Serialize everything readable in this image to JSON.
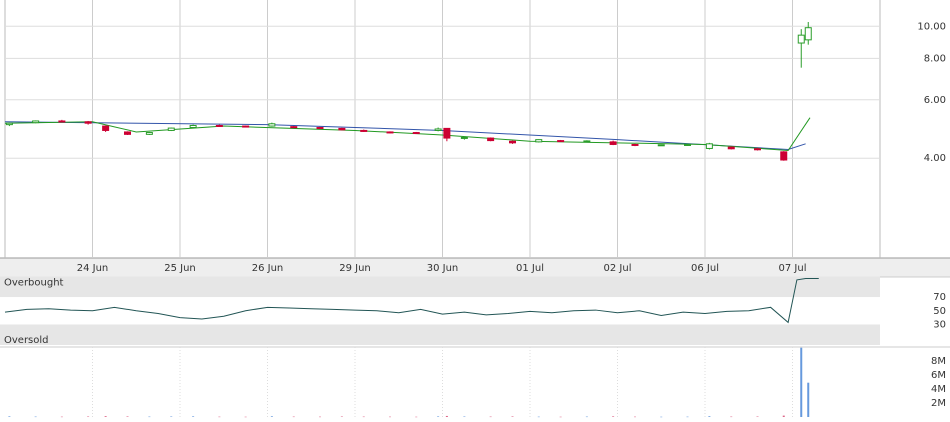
{
  "chart_data": [
    {
      "type": "candlestick",
      "log_scale": true,
      "grid": true,
      "up_color": "#2a9d2a",
      "down_color": "#cc0033",
      "xlim": [
        0,
        10
      ],
      "ylim": [
        2,
        12
      ],
      "yticks": [
        {
          "value": 10,
          "label": "10.00"
        },
        {
          "value": 8,
          "label": "8.00"
        },
        {
          "value": 6,
          "label": "6.00"
        },
        {
          "value": 4,
          "label": "4.00"
        }
      ],
      "xticks": [
        {
          "value": 1,
          "label": "24 Jun"
        },
        {
          "value": 2,
          "label": "25 Jun"
        },
        {
          "value": 3,
          "label": "26 Jun"
        },
        {
          "value": 4,
          "label": "29 Jun"
        },
        {
          "value": 5,
          "label": "30 Jun"
        },
        {
          "value": 6,
          "label": "01 Jul"
        },
        {
          "value": 7,
          "label": "02 Jul"
        },
        {
          "value": 8,
          "label": "06 Jul"
        },
        {
          "value": 9,
          "label": "07 Jul"
        }
      ],
      "x": [
        0.05,
        0.35,
        0.65,
        0.95,
        1.15,
        1.4,
        1.65,
        1.9,
        2.15,
        2.45,
        2.75,
        3.05,
        3.3,
        3.6,
        3.85,
        4.1,
        4.4,
        4.7,
        4.95,
        5.05,
        5.25,
        5.55,
        5.8,
        6.1,
        6.35,
        6.65,
        6.95,
        7.2,
        7.5,
        7.8,
        8.05,
        8.3,
        8.6,
        8.9,
        9.1,
        9.18
      ],
      "open": [
        5.05,
        5.12,
        5.18,
        5.15,
        5.0,
        4.8,
        4.72,
        4.85,
        4.95,
        5.02,
        5.0,
        5.0,
        4.98,
        4.95,
        4.92,
        4.85,
        4.8,
        4.78,
        4.85,
        4.92,
        4.6,
        4.6,
        4.5,
        4.48,
        4.52,
        4.5,
        4.48,
        4.4,
        4.38,
        4.38,
        4.28,
        4.32,
        4.27,
        4.18,
        8.9,
        9.1
      ],
      "high": [
        5.12,
        5.2,
        5.22,
        5.18,
        5.02,
        4.82,
        4.8,
        4.95,
        5.05,
        5.05,
        5.02,
        5.12,
        5.0,
        4.97,
        4.94,
        4.88,
        4.82,
        4.8,
        4.95,
        4.93,
        4.65,
        4.62,
        4.52,
        4.56,
        4.54,
        4.53,
        4.52,
        4.42,
        4.4,
        4.42,
        4.45,
        4.34,
        4.3,
        4.2,
        9.8,
        10.3
      ],
      "low": [
        5.0,
        5.1,
        5.15,
        5.05,
        4.8,
        4.7,
        4.7,
        4.83,
        4.93,
        4.98,
        4.97,
        4.98,
        4.93,
        4.9,
        4.85,
        4.8,
        4.75,
        4.74,
        4.82,
        4.5,
        4.55,
        4.5,
        4.42,
        4.46,
        4.48,
        4.47,
        4.38,
        4.35,
        4.36,
        4.36,
        4.25,
        4.25,
        4.22,
        3.93,
        7.5,
        8.8
      ],
      "close": [
        5.1,
        5.18,
        5.17,
        5.1,
        4.85,
        4.72,
        4.78,
        4.93,
        5.02,
        5.0,
        4.99,
        5.08,
        4.95,
        4.92,
        4.87,
        4.82,
        4.78,
        4.77,
        4.9,
        4.6,
        4.62,
        4.52,
        4.45,
        4.55,
        4.5,
        4.51,
        4.4,
        4.38,
        4.39,
        4.4,
        4.42,
        4.27,
        4.25,
        3.95,
        9.4,
        9.9
      ],
      "lines": [
        {
          "color": "#3355aa",
          "x": [
            0,
            3,
            5,
            7,
            8.95,
            9.15
          ],
          "values": [
            5.15,
            5.05,
            4.85,
            4.55,
            4.25,
            4.42
          ]
        },
        {
          "color": "#229922",
          "x": [
            0,
            1,
            1.5,
            2.5,
            4,
            5,
            6,
            8,
            8.95,
            9.2
          ],
          "values": [
            5.1,
            5.15,
            4.8,
            5.0,
            4.85,
            4.7,
            4.5,
            4.4,
            4.22,
            5.3
          ]
        }
      ]
    },
    {
      "type": "line",
      "color": "#225555",
      "xlim": [
        0,
        10
      ],
      "ylim": [
        0,
        100
      ],
      "yticks": [
        70,
        50,
        30
      ],
      "bands": [
        {
          "label": "Overbought",
          "from": 70,
          "to": 100
        },
        {
          "label": "Oversold",
          "from": 0,
          "to": 30
        }
      ],
      "x": [
        0,
        0.25,
        0.5,
        0.75,
        1,
        1.25,
        1.5,
        1.75,
        2,
        2.25,
        2.5,
        2.75,
        3,
        3.25,
        3.5,
        3.75,
        4,
        4.25,
        4.5,
        4.75,
        5,
        5.25,
        5.5,
        5.75,
        6,
        6.25,
        6.5,
        6.75,
        7,
        7.25,
        7.5,
        7.75,
        8,
        8.25,
        8.5,
        8.75,
        8.95,
        9.05,
        9.15,
        9.3
      ],
      "values": [
        48,
        52,
        53,
        51,
        50,
        55,
        50,
        46,
        40,
        38,
        42,
        50,
        55,
        54,
        53,
        52,
        51,
        50,
        47,
        52,
        45,
        48,
        44,
        46,
        49,
        47,
        50,
        51,
        47,
        50,
        43,
        48,
        46,
        49,
        50,
        55,
        33,
        95,
        97,
        97
      ]
    },
    {
      "type": "volume",
      "xlim": [
        0,
        10
      ],
      "ylim": [
        0,
        10000000
      ],
      "up_color": "#6699dd",
      "down_color": "#dd6688",
      "yticks": [
        {
          "value": 8000000,
          "label": "8M"
        },
        {
          "value": 6000000,
          "label": "6M"
        },
        {
          "value": 4000000,
          "label": "4M"
        },
        {
          "value": 2000000,
          "label": "2M"
        }
      ],
      "x": [
        0.05,
        0.35,
        0.65,
        0.95,
        1.15,
        1.4,
        1.65,
        1.9,
        2.15,
        2.45,
        2.75,
        3.05,
        3.3,
        3.6,
        3.85,
        4.1,
        4.4,
        4.7,
        4.95,
        5.05,
        5.25,
        5.55,
        5.8,
        6.1,
        6.35,
        6.65,
        6.95,
        7.2,
        7.5,
        7.8,
        8.05,
        8.3,
        8.6,
        8.9,
        9.1,
        9.18
      ],
      "values": [
        90000,
        60000,
        50000,
        70000,
        120000,
        80000,
        60000,
        70000,
        90000,
        50000,
        40000,
        100000,
        60000,
        50000,
        70000,
        60000,
        50000,
        40000,
        80000,
        150000,
        70000,
        60000,
        80000,
        50000,
        40000,
        60000,
        90000,
        50000,
        40000,
        50000,
        110000,
        60000,
        70000,
        200000,
        9900000,
        4900000
      ],
      "directions": null
    }
  ]
}
